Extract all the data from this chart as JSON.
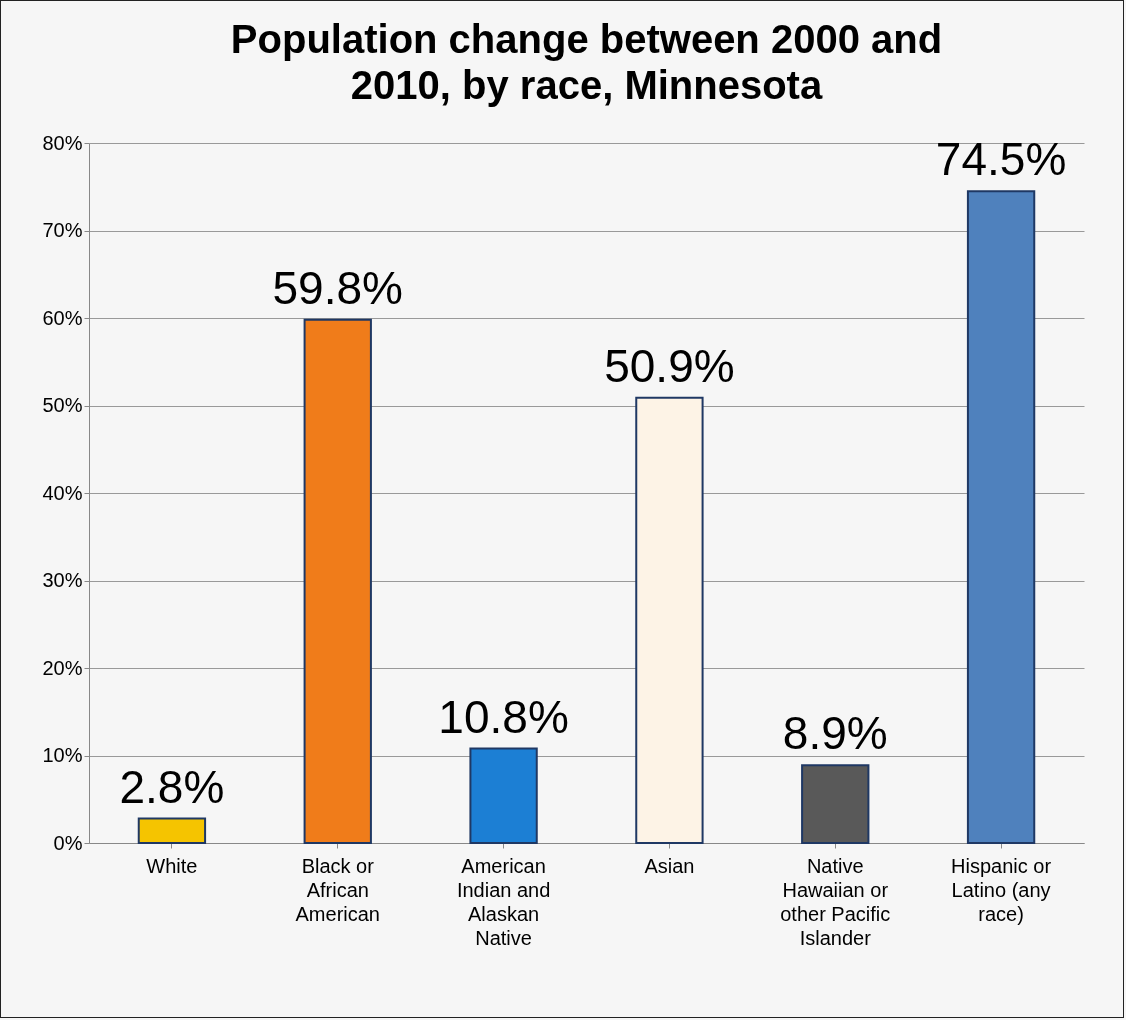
{
  "chart_data": {
    "type": "bar",
    "title": "Population change between 2000 and 2010, by race, Minnesota",
    "categories": [
      "White",
      "Black or African American",
      "American Indian and Alaskan Native",
      "Asian",
      "Native Hawaiian or other Pacific Islander",
      "Hispanic or Latino (any race)"
    ],
    "values": [
      2.8,
      59.8,
      10.8,
      50.9,
      8.9,
      74.5
    ],
    "colors": [
      "#f5c400",
      "#f07c1a",
      "#1c7fd4",
      "#fdf3e6",
      "#595959",
      "#4f81bd"
    ],
    "value_labels": [
      "2.8%",
      "59.8%",
      "10.8%",
      "50.9%",
      "8.9%",
      "74.5%"
    ],
    "ylim": [
      0,
      80
    ],
    "yticks": [
      {
        "value": 0,
        "label": "0%"
      },
      {
        "value": 10,
        "label": "10%"
      },
      {
        "value": 20,
        "label": "20%"
      },
      {
        "value": 30,
        "label": "30%"
      },
      {
        "value": 40,
        "label": "40%"
      },
      {
        "value": 50,
        "label": "50%"
      },
      {
        "value": 60,
        "label": "60%"
      },
      {
        "value": 70,
        "label": "70%"
      },
      {
        "value": 80,
        "label": "80%"
      }
    ],
    "grid": "y"
  }
}
